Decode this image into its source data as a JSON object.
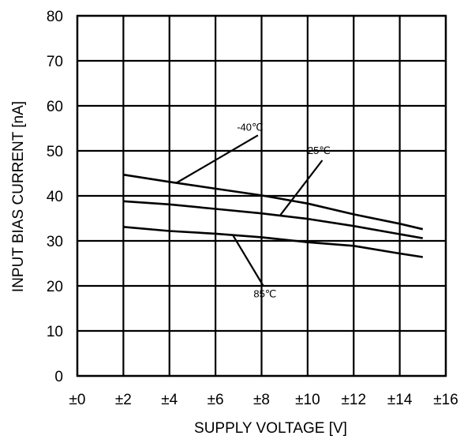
{
  "chart_data": {
    "type": "line",
    "title": "",
    "xlabel": "SUPPLY VOLTAGE [V]",
    "ylabel": "INPUT BIAS CURRENT [nA]",
    "xlim": [
      0,
      16
    ],
    "ylim": [
      0,
      80
    ],
    "x_tick_labels": [
      "±0",
      "±2",
      "±4",
      "±6",
      "±8",
      "±10",
      "±12",
      "±14",
      "±16"
    ],
    "y_tick_labels": [
      "0",
      "10",
      "20",
      "30",
      "40",
      "50",
      "60",
      "70",
      "80"
    ],
    "grid": true,
    "legend": "none (curves labeled inline)",
    "line_color": "#000000",
    "series": [
      {
        "name": "-40℃",
        "x": [
          2,
          4,
          6,
          8,
          10,
          12,
          14,
          15
        ],
        "y": [
          44.7,
          43.1,
          41.6,
          40.1,
          38.3,
          35.9,
          33.8,
          32.6
        ]
      },
      {
        "name": "25℃",
        "x": [
          2,
          4,
          6,
          8,
          10,
          12,
          14,
          15
        ],
        "y": [
          38.8,
          38.1,
          37.1,
          36.1,
          34.9,
          33.3,
          31.5,
          30.6
        ]
      },
      {
        "name": "85℃",
        "x": [
          2,
          4,
          6,
          8,
          10,
          12,
          14,
          15
        ],
        "y": [
          33.1,
          32.2,
          31.6,
          30.8,
          29.7,
          28.9,
          27.2,
          26.4
        ]
      }
    ],
    "annotations": [
      {
        "text": "-40℃",
        "series": "-40℃",
        "x": 7.5,
        "y": 54.5
      },
      {
        "text": "25℃",
        "series": "25℃",
        "x": 10.5,
        "y": 49.3
      },
      {
        "text": "85℃",
        "series": "85℃",
        "x": 8.15,
        "y": 17.5
      }
    ]
  }
}
